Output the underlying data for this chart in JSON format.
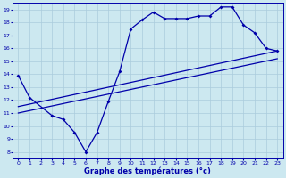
{
  "xlabel": "Graphe des températures (°c)",
  "bg_color": "#cce8f0",
  "line_color": "#0000aa",
  "grid_color": "#aaccdd",
  "xlim": [
    -0.5,
    23.5
  ],
  "ylim": [
    7.5,
    19.5
  ],
  "xticks": [
    0,
    1,
    2,
    3,
    4,
    5,
    6,
    7,
    8,
    9,
    10,
    11,
    12,
    13,
    14,
    15,
    16,
    17,
    18,
    19,
    20,
    21,
    22,
    23
  ],
  "yticks": [
    8,
    9,
    10,
    11,
    12,
    13,
    14,
    15,
    16,
    17,
    18,
    19
  ],
  "line1_x": [
    0,
    1,
    3,
    4,
    5,
    6,
    7,
    8,
    9,
    10,
    11,
    12,
    13,
    14,
    15,
    16,
    17,
    18,
    19,
    20,
    21,
    22,
    23
  ],
  "line1_y": [
    13.9,
    12.2,
    10.8,
    10.5,
    9.5,
    8.0,
    9.5,
    11.9,
    14.2,
    17.5,
    18.2,
    18.8,
    18.3,
    18.3,
    18.3,
    18.5,
    18.5,
    19.2,
    19.2,
    17.8,
    17.2,
    16.0,
    15.8
  ],
  "line2_x": [
    0,
    23
  ],
  "line2_y": [
    11.0,
    15.2
  ],
  "line3_x": [
    0,
    23
  ],
  "line3_y": [
    11.5,
    15.8
  ]
}
